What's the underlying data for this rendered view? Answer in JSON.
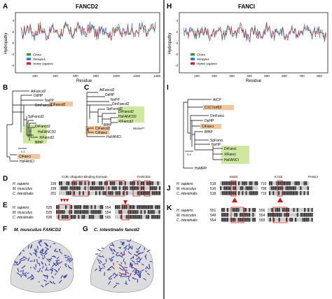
{
  "figure": {
    "left_title": "FANCD2",
    "right_title": "FANCI",
    "panels": {
      "A": "A",
      "B": "B",
      "C": "C",
      "D": "D",
      "E": "E",
      "F": "F",
      "G": "G",
      "H": "H",
      "I": "I",
      "J": "J",
      "K": "K"
    }
  },
  "colors": {
    "ciona": "#2e9e3a",
    "xenopus": "#2277dd",
    "homo": "#dd1f2a",
    "tree_orange": "#f0c69c",
    "tree_green": "#cfe8a0",
    "box_red": "#d01818",
    "alignment_dark": "#3a3a3a"
  },
  "hydropathy": {
    "ylabel": "Hydropathy",
    "xlabel": "Residue",
    "legend": [
      "Ciona",
      "Xenopus",
      "Homo sapiens"
    ],
    "A": {
      "yticks": [
        "4",
        "2",
        "0",
        "-2",
        "-4"
      ],
      "xticks": [
        "200",
        "400",
        "600",
        "800",
        "1000",
        "1200",
        "1400"
      ]
    },
    "H": {
      "yticks": [
        "4",
        "2",
        "0",
        "-2",
        "-4"
      ],
      "xticks": [
        "100",
        "200",
        "300",
        "400",
        "500",
        "600",
        "700",
        "800"
      ]
    }
  },
  "treeB": {
    "labels": [
      "AtFancd2",
      "DdHP",
      "NvPP",
      "DmFancd2",
      "CiFancd2",
      "SpFancd2",
      "DrFancd2",
      "HsFANCD2",
      "XlFancd2",
      "BfHP",
      "CiFanci",
      "HsFANCI"
    ],
    "scale": "0.4"
  },
  "treeC": {
    "labels": [
      "AtFancd2",
      "DdHP",
      "NvPP",
      "DmFancd2",
      "SpFancd2",
      "DrFancd2",
      "HsFANCD2",
      "XlFancd2",
      "BfHP",
      "CiFancd2",
      "CiFanci",
      "HsFANCI"
    ],
    "note": "Worse**"
  },
  "treeI": {
    "labels": [
      "AtCP",
      "C1C7orf63",
      "DmFanci",
      "DpHP",
      "CiFanci",
      "BfHP",
      "SpFanci",
      "NvHP",
      "DrFanci",
      "XlFanci",
      "HsFANCI",
      "HsMRP"
    ],
    "scale": "0.4"
  },
  "alignD": {
    "header_left": "CUE Ubiquitin-Binding Domain",
    "header_right": "FANCD2",
    "rows": [
      {
        "species": "H. sapiens",
        "num": "199"
      },
      {
        "species": "M. musculus",
        "num": "199"
      },
      {
        "species": "C. intestinalis",
        "num": "201"
      }
    ]
  },
  "alignE": {
    "rows": [
      {
        "species": "H. sapiens",
        "num1": "525",
        "num2": "554"
      },
      {
        "species": "M. musculus",
        "num1": "525",
        "num2": "554"
      },
      {
        "species": "C. intestinalis",
        "num1": "536",
        "num2": "565"
      }
    ]
  },
  "alignJ": {
    "header_left": "K523",
    "header_mid": "K715",
    "header_right": "FANCI",
    "rows": [
      {
        "species": "H. sapiens",
        "num1": "518",
        "num2": "710"
      },
      {
        "species": "M. musculus",
        "num1": "516",
        "num2": "708"
      },
      {
        "species": "C. intestinalis",
        "num1": "518",
        "num2": "719"
      }
    ]
  },
  "alignK": {
    "rows": [
      {
        "species": "H. sapiens",
        "num1": "551",
        "num2": "556"
      },
      {
        "species": "M. musculus",
        "num1": "549",
        "num2": "554"
      },
      {
        "species": "C. intestinalis",
        "num1": "554",
        "num2": "559"
      }
    ]
  },
  "structures": {
    "F": "M. musculus FANCD2",
    "G": "C. intestinalis fancd2"
  }
}
